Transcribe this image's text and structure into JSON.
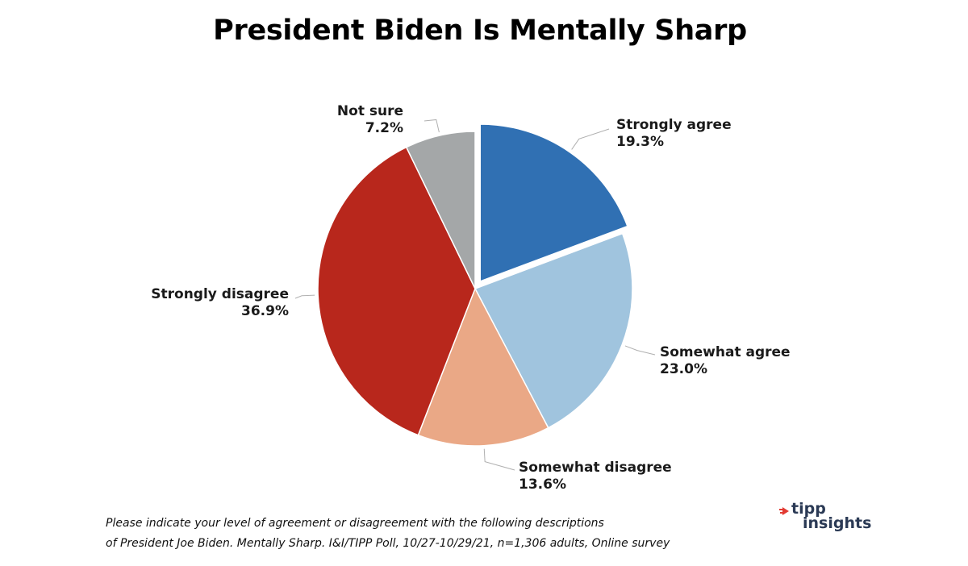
{
  "chart_data": {
    "type": "pie",
    "title": "President Biden Is Mentally Sharp",
    "slices": [
      {
        "label": "Strongly agree",
        "value": 19.3,
        "display": "19.3%",
        "color": "#3070b3",
        "exploded": true
      },
      {
        "label": "Somewhat agree",
        "value": 23.0,
        "display": "23.0%",
        "color": "#a0c4de",
        "exploded": false
      },
      {
        "label": "Somewhat disagree",
        "value": 13.6,
        "display": "13.6%",
        "color": "#eaa886",
        "exploded": false
      },
      {
        "label": "Strongly disagree",
        "value": 36.9,
        "display": "36.9%",
        "color": "#b8271c",
        "exploded": false
      },
      {
        "label": "Not sure",
        "value": 7.2,
        "display": "7.2%",
        "color": "#a4a7a8",
        "exploded": false
      }
    ],
    "start_angle_deg": 0,
    "direction": "clockwise",
    "legend": "none"
  },
  "footnote": {
    "line1": "Please indicate your level of agreement or disagreement with the following descriptions",
    "line2": "of President Joe Biden. Mentally Sharp.  I&I/TIPP Poll, 10/27-10/29/21, n=1,306 adults, Online survey"
  },
  "logo": {
    "line1": "tipp",
    "line2": "insights",
    "mark_color": "#e23a32",
    "text_color": "#2b3a55"
  }
}
